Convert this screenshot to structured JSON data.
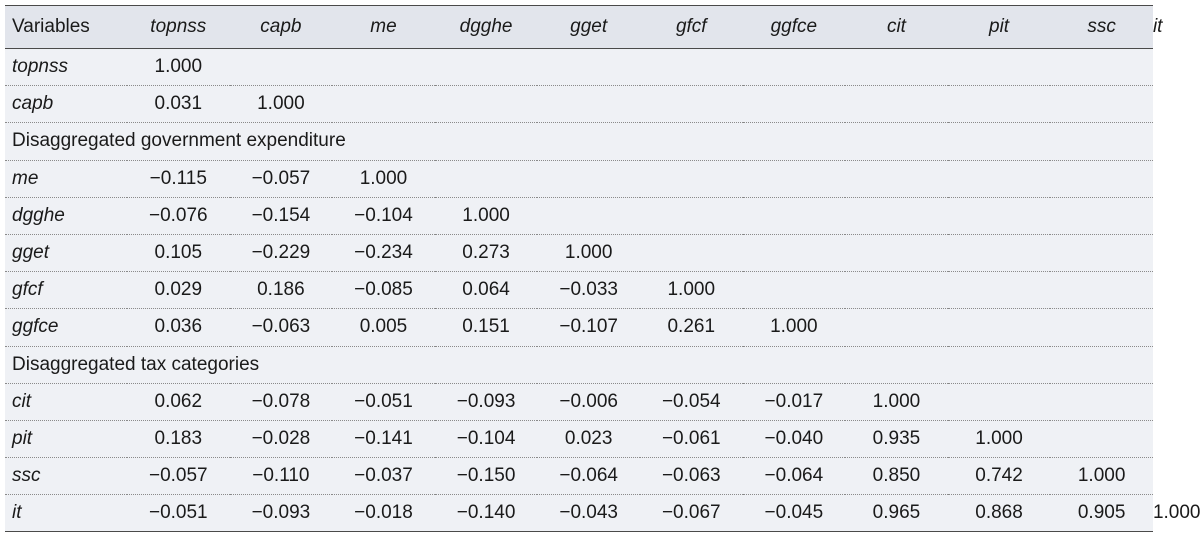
{
  "table": {
    "header": [
      "Variables",
      "topnss",
      "capb",
      "me",
      "dgghe",
      "gget",
      "gfcf",
      "ggfce",
      "cit",
      "pit",
      "ssc",
      "it"
    ],
    "rows": [
      {
        "type": "data",
        "label": "topnss",
        "values": [
          "1.000",
          "",
          "",
          "",
          "",
          "",
          "",
          "",
          "",
          "",
          ""
        ]
      },
      {
        "type": "data",
        "label": "capb",
        "values": [
          "0.031",
          "1.000",
          "",
          "",
          "",
          "",
          "",
          "",
          "",
          "",
          ""
        ]
      },
      {
        "type": "section",
        "label": "Disaggregated government expenditure"
      },
      {
        "type": "data",
        "label": "me",
        "values": [
          "−0.115",
          "−0.057",
          "1.000",
          "",
          "",
          "",
          "",
          "",
          "",
          "",
          ""
        ]
      },
      {
        "type": "data",
        "label": "dgghe",
        "values": [
          "−0.076",
          "−0.154",
          "−0.104",
          "1.000",
          "",
          "",
          "",
          "",
          "",
          "",
          ""
        ]
      },
      {
        "type": "data",
        "label": "gget",
        "values": [
          "0.105",
          "−0.229",
          "−0.234",
          "0.273",
          "1.000",
          "",
          "",
          "",
          "",
          "",
          ""
        ]
      },
      {
        "type": "data",
        "label": "gfcf",
        "values": [
          "0.029",
          "0.186",
          "−0.085",
          "0.064",
          "−0.033",
          "1.000",
          "",
          "",
          "",
          "",
          ""
        ]
      },
      {
        "type": "data",
        "label": "ggfce",
        "values": [
          "0.036",
          "−0.063",
          "0.005",
          "0.151",
          "−0.107",
          "0.261",
          "1.000",
          "",
          "",
          "",
          ""
        ]
      },
      {
        "type": "section",
        "label": "Disaggregated tax categories"
      },
      {
        "type": "data",
        "label": "cit",
        "values": [
          "0.062",
          "−0.078",
          "−0.051",
          "−0.093",
          "−0.006",
          "−0.054",
          "−0.017",
          "1.000",
          "",
          "",
          ""
        ]
      },
      {
        "type": "data",
        "label": "pit",
        "values": [
          "0.183",
          "−0.028",
          "−0.141",
          "−0.104",
          "0.023",
          "−0.061",
          "−0.040",
          "0.935",
          "1.000",
          "",
          ""
        ]
      },
      {
        "type": "data",
        "label": "ssc",
        "values": [
          "−0.057",
          "−0.110",
          "−0.037",
          "−0.150",
          "−0.064",
          "−0.063",
          "−0.064",
          "0.850",
          "0.742",
          "1.000",
          ""
        ]
      },
      {
        "type": "data",
        "label": "it",
        "values": [
          "−0.051",
          "−0.093",
          "−0.018",
          "−0.140",
          "−0.043",
          "−0.067",
          "−0.045",
          "0.965",
          "0.868",
          "0.905",
          "1.000"
        ]
      }
    ]
  }
}
